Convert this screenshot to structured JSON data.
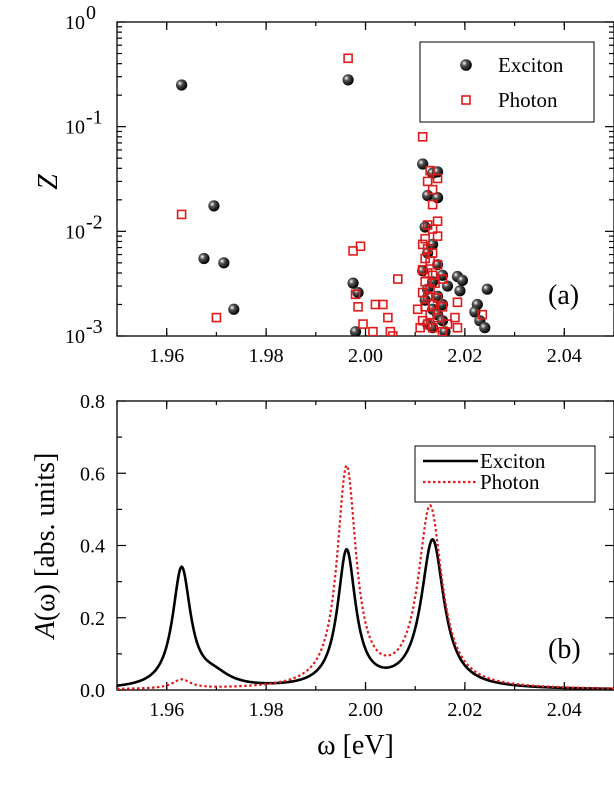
{
  "chart_data": [
    {
      "type": "scatter",
      "panel_label": "(a)",
      "ylabel": "Z",
      "y_scale": "log",
      "xlim": [
        1.95,
        2.05
      ],
      "ylim": [
        0.001,
        1
      ],
      "x_ticks": [
        "1.96",
        "1.98",
        "2.00",
        "2.02",
        "2.04"
      ],
      "y_ticks": [
        {
          "base": "10",
          "exp": "0",
          "value": 1
        },
        {
          "base": "10",
          "exp": "-1",
          "value": 0.1
        },
        {
          "base": "10",
          "exp": "-2",
          "value": 0.01
        },
        {
          "base": "10",
          "exp": "-3",
          "value": 0.001
        }
      ],
      "legend_position": "top-right",
      "series": [
        {
          "name": "Exciton",
          "marker": "filled-sphere",
          "color": "#000000",
          "points": [
            [
              1.963,
              0.25
            ],
            [
              1.9695,
              0.0175
            ],
            [
              1.9675,
              0.0055
            ],
            [
              1.9715,
              0.005
            ],
            [
              1.9735,
              0.0018
            ],
            [
              1.9965,
              0.28
            ],
            [
              1.9975,
              0.0032
            ],
            [
              1.9985,
              0.0026
            ],
            [
              1.998,
              0.0011
            ],
            [
              2.0115,
              0.044
            ],
            [
              2.0125,
              0.022
            ],
            [
              2.0135,
              0.036
            ],
            [
              2.0145,
              0.037
            ],
            [
              2.0145,
              0.021
            ],
            [
              2.012,
              0.011
            ],
            [
              2.0135,
              0.0075
            ],
            [
              2.0125,
              0.0062
            ],
            [
              2.0145,
              0.0048
            ],
            [
              2.0115,
              0.0042
            ],
            [
              2.0155,
              0.0038
            ],
            [
              2.0135,
              0.0033
            ],
            [
              2.0165,
              0.003
            ],
            [
              2.0125,
              0.0028
            ],
            [
              2.0145,
              0.0024
            ],
            [
              2.012,
              0.0022
            ],
            [
              2.0155,
              0.002
            ],
            [
              2.0135,
              0.0018
            ],
            [
              2.0145,
              0.0016
            ],
            [
              2.0155,
              0.0014
            ],
            [
              2.0125,
              0.0013
            ],
            [
              2.0135,
              0.0012
            ],
            [
              2.016,
              0.0011
            ],
            [
              2.0185,
              0.0037
            ],
            [
              2.0195,
              0.0034
            ],
            [
              2.019,
              0.0027
            ],
            [
              2.0225,
              0.002
            ],
            [
              2.022,
              0.0017
            ],
            [
              2.0245,
              0.0028
            ],
            [
              2.023,
              0.0014
            ],
            [
              2.024,
              0.0012
            ]
          ]
        },
        {
          "name": "Photon",
          "marker": "open-square",
          "color": "#e01a1a",
          "points": [
            [
              1.963,
              0.0145
            ],
            [
              1.97,
              0.0015
            ],
            [
              1.9965,
              0.45
            ],
            [
              1.9975,
              0.0065
            ],
            [
              1.999,
              0.0072
            ],
            [
              1.998,
              0.0025
            ],
            [
              1.9985,
              0.0019
            ],
            [
              1.9995,
              0.0013
            ],
            [
              2.0015,
              0.0011
            ],
            [
              2.002,
              0.002
            ],
            [
              2.0035,
              0.002
            ],
            [
              2.0045,
              0.0015
            ],
            [
              2.005,
              0.0011
            ],
            [
              2.0065,
              0.0035
            ],
            [
              2.0055,
              0.001
            ],
            [
              2.0115,
              0.08
            ],
            [
              2.0125,
              0.03
            ],
            [
              2.013,
              0.038
            ],
            [
              2.0135,
              0.025
            ],
            [
              2.0145,
              0.032
            ],
            [
              2.0135,
              0.018
            ],
            [
              2.0145,
              0.0125
            ],
            [
              2.0125,
              0.0115
            ],
            [
              2.012,
              0.0085
            ],
            [
              2.0135,
              0.0105
            ],
            [
              2.0145,
              0.009
            ],
            [
              2.0115,
              0.0075
            ],
            [
              2.0125,
              0.0068
            ],
            [
              2.0135,
              0.0062
            ],
            [
              2.012,
              0.0055
            ],
            [
              2.013,
              0.0052
            ],
            [
              2.0145,
              0.0048
            ],
            [
              2.0115,
              0.0043
            ],
            [
              2.0125,
              0.004
            ],
            [
              2.0135,
              0.0038
            ],
            [
              2.012,
              0.0033
            ],
            [
              2.014,
              0.0032
            ],
            [
              2.0155,
              0.0035
            ],
            [
              2.013,
              0.0028
            ],
            [
              2.0115,
              0.0026
            ],
            [
              2.0125,
              0.0024
            ],
            [
              2.0145,
              0.0023
            ],
            [
              2.0135,
              0.002
            ],
            [
              2.012,
              0.0019
            ],
            [
              2.0155,
              0.0019
            ],
            [
              2.0105,
              0.0018
            ],
            [
              2.013,
              0.0016
            ],
            [
              2.0145,
              0.0015
            ],
            [
              2.0115,
              0.0014
            ],
            [
              2.0125,
              0.0013
            ],
            [
              2.0135,
              0.0012
            ],
            [
              2.011,
              0.0012
            ],
            [
              2.0155,
              0.0011
            ],
            [
              2.0165,
              0.0013
            ],
            [
              2.0185,
              0.0021
            ],
            [
              2.018,
              0.0015
            ],
            [
              2.0185,
              0.0012
            ],
            [
              2.0235,
              0.0016
            ]
          ]
        }
      ]
    },
    {
      "type": "line",
      "panel_label": "(b)",
      "xlabel_symbol": "ω",
      "xlabel_unit": "[eV]",
      "ylabel_symbol": "A",
      "ylabel_arg": "(ω)",
      "ylabel_unit": "[abs. units]",
      "xlim": [
        1.95,
        2.05
      ],
      "ylim": [
        0.0,
        0.8
      ],
      "x_ticks": [
        "1.96",
        "1.98",
        "2.00",
        "2.02",
        "2.04"
      ],
      "y_ticks": [
        "0.0",
        "0.2",
        "0.4",
        "0.6",
        "0.8"
      ],
      "legend_position": "top-right",
      "series": [
        {
          "name": "Exciton",
          "style": "solid",
          "color": "#000000",
          "peaks": [
            {
              "center": 1.963,
              "width": 0.0022,
              "height": 0.33
            },
            {
              "center": 1.9695,
              "width": 0.004,
              "height": 0.03
            },
            {
              "center": 1.9962,
              "width": 0.0022,
              "height": 0.377
            },
            {
              "center": 2.0135,
              "width": 0.0028,
              "height": 0.41
            }
          ]
        },
        {
          "name": "Photon",
          "style": "dotted",
          "color": "#e01a1a",
          "peaks": [
            {
              "center": 1.963,
              "width": 0.0022,
              "height": 0.025
            },
            {
              "center": 1.9962,
              "width": 0.0023,
              "height": 0.607
            },
            {
              "center": 2.013,
              "width": 0.0029,
              "height": 0.5
            }
          ]
        }
      ]
    }
  ]
}
